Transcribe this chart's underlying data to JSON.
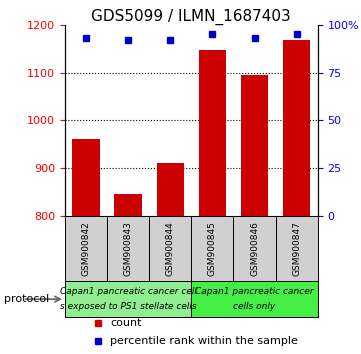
{
  "title": "GDS5099 / ILMN_1687403",
  "samples": [
    "GSM900842",
    "GSM900843",
    "GSM900844",
    "GSM900845",
    "GSM900846",
    "GSM900847"
  ],
  "counts": [
    960,
    845,
    910,
    1148,
    1095,
    1168
  ],
  "percentile_ranks": [
    93,
    92,
    92,
    95,
    93,
    95
  ],
  "ylim_left": [
    800,
    1200
  ],
  "ylim_right": [
    0,
    100
  ],
  "yticks_left": [
    800,
    900,
    1000,
    1100,
    1200
  ],
  "yticks_right": [
    0,
    25,
    50,
    75,
    100
  ],
  "ytick_right_labels": [
    "0",
    "25",
    "50",
    "75",
    "100%"
  ],
  "bar_color": "#cc0000",
  "dot_color": "#0000cc",
  "group1_color": "#90ee90",
  "group2_color": "#44ee44",
  "group1_label_line1": "Capan1 pancreatic cancer cell",
  "group1_label_line2": "s exposed to PS1 stellate cells",
  "group2_label_line1": "Capan1 pancreatic cancer",
  "group2_label_line2": "cells only",
  "protocol_label": "protocol",
  "legend_items": [
    {
      "color": "#cc0000",
      "label": "count"
    },
    {
      "color": "#0000cc",
      "label": "percentile rank within the sample"
    }
  ],
  "title_fontsize": 11,
  "tick_fontsize": 8,
  "sample_fontsize": 6.5,
  "proto_fontsize": 6.5,
  "legend_fontsize": 8
}
